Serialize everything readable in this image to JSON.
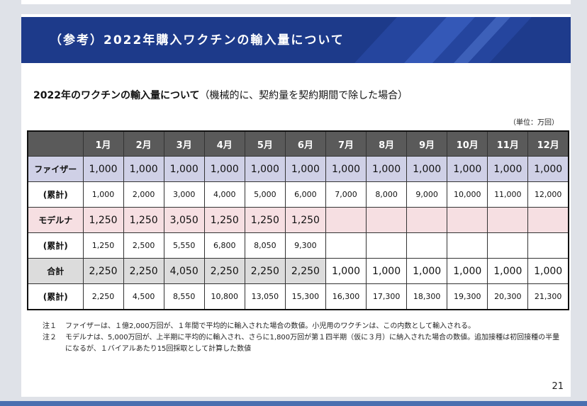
{
  "header": {
    "title": "（参考）2022年購入ワクチンの輸入量について"
  },
  "subtitle": {
    "bold": "2022年のワクチンの輸入量について",
    "normal": "（機械的に、契約量を契約期間で除した場合）"
  },
  "unit": "（単位：万回）",
  "table": {
    "months": [
      "1月",
      "2月",
      "3月",
      "4月",
      "5月",
      "6月",
      "7月",
      "8月",
      "9月",
      "10月",
      "11月",
      "12月"
    ],
    "rows": [
      {
        "label": "ファイザー",
        "values": [
          "1,000",
          "1,000",
          "1,000",
          "1,000",
          "1,000",
          "1,000",
          "1,000",
          "1,000",
          "1,000",
          "1,000",
          "1,000",
          "1,000"
        ]
      },
      {
        "label": "(累計)",
        "values": [
          "1,000",
          "2,000",
          "3,000",
          "4,000",
          "5,000",
          "6,000",
          "7,000",
          "8,000",
          "9,000",
          "10,000",
          "11,000",
          "12,000"
        ]
      },
      {
        "label": "モデルナ",
        "values": [
          "1,250",
          "1,250",
          "3,050",
          "1,250",
          "1,250",
          "1,250",
          "",
          "",
          "",
          "",
          "",
          ""
        ]
      },
      {
        "label": "(累計)",
        "values": [
          "1,250",
          "2,500",
          "5,550",
          "6,800",
          "8,050",
          "9,300",
          "",
          "",
          "",
          "",
          "",
          ""
        ]
      },
      {
        "label": "合計",
        "values": [
          "2,250",
          "2,250",
          "4,050",
          "2,250",
          "2,250",
          "2,250",
          "1,000",
          "1,000",
          "1,000",
          "1,000",
          "1,000",
          "1,000"
        ]
      },
      {
        "label": "(累計)",
        "values": [
          "2,250",
          "4,500",
          "8,550",
          "10,800",
          "13,050",
          "15,300",
          "16,300",
          "17,300",
          "18,300",
          "19,300",
          "20,300",
          "21,300"
        ]
      }
    ]
  },
  "notes": [
    {
      "label": "注１",
      "text": "ファイザーは、１億2,000万回が、１年間で平均的に輸入された場合の数値。小児用のワクチンは、この内数として輸入される。"
    },
    {
      "label": "注２",
      "text": "モデルナは、5,000万回が、上半期に平均的に輸入され、さらに1,800万回が第１四半期（仮に３月）に納入された場合の数値。追加接種は初回接種の半量になるが、１バイアルあたり15回採取として計算した数値"
    }
  ],
  "page_number": "21",
  "colors": {
    "header_band": "#1d3a8a",
    "pfizer_row": "#cfd0e6",
    "moderna_row": "#f6dfe2",
    "total_row": "#dcdcdc",
    "table_header": "#5a5a5a"
  }
}
